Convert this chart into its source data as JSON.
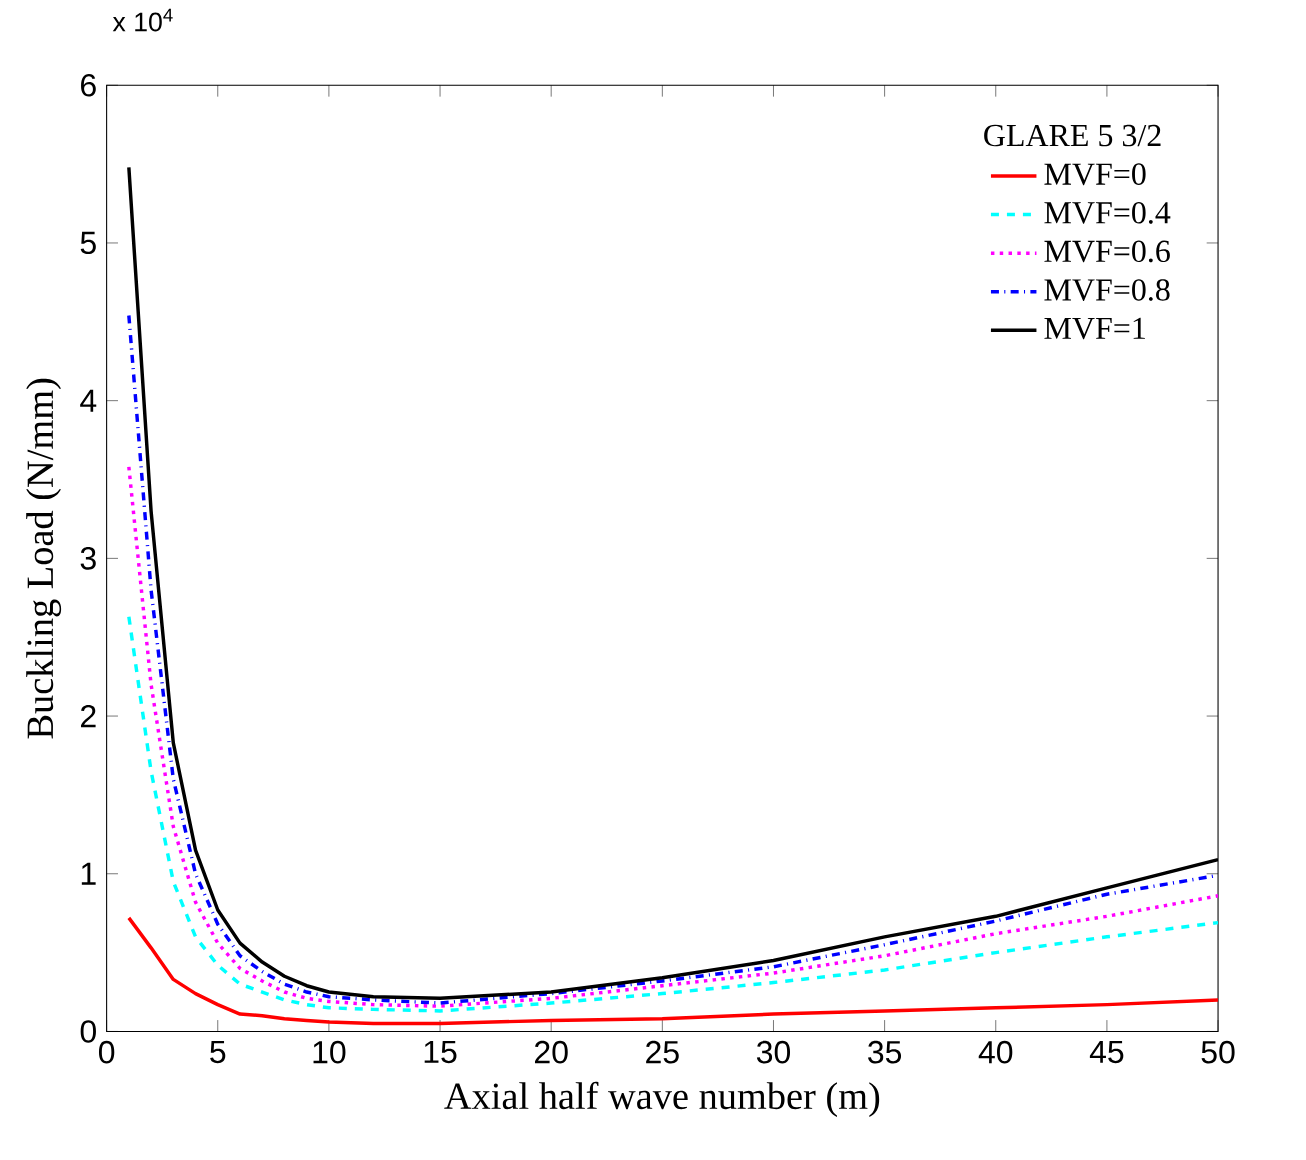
{
  "chart_data": {
    "type": "line",
    "xlabel": "Axial half wave number (m)",
    "ylabel": "Buckling Load (N/mm)",
    "legend_title": "GLARE 5 3/2",
    "annotations": [
      "x 10$^{4}$"
    ],
    "xlim": [
      0,
      50
    ],
    "xticks": [
      0,
      5,
      10,
      15,
      20,
      25,
      30,
      35,
      40,
      45,
      50
    ],
    "ylim": [
      0,
      6
    ],
    "yticks": [
      0,
      1,
      2,
      3,
      4,
      5,
      6
    ],
    "grid": false,
    "legend": "top right",
    "x": [
      1,
      2,
      3,
      4,
      5,
      6,
      7,
      8,
      9,
      10,
      12,
      15,
      20,
      25,
      30,
      35,
      40,
      45,
      50
    ],
    "series": [
      {
        "name": "MVF=0",
        "color": "#ff0000",
        "line_style": "solid",
        "values": [
          0.72,
          0.53,
          0.33,
          0.24,
          0.17,
          0.11,
          0.1,
          0.08,
          0.07,
          0.06,
          0.05,
          0.05,
          0.07,
          0.08,
          0.11,
          0.13,
          0.15,
          0.17,
          0.2
        ]
      },
      {
        "name": "MVF=0.4",
        "color": "#00ffff",
        "line_style": "dashed",
        "values": [
          2.63,
          1.65,
          0.95,
          0.6,
          0.42,
          0.3,
          0.25,
          0.2,
          0.17,
          0.15,
          0.14,
          0.13,
          0.18,
          0.24,
          0.31,
          0.39,
          0.5,
          0.6,
          0.69
        ]
      },
      {
        "name": "MVF=0.6",
        "color": "#ff00ff",
        "line_style": "dotted",
        "values": [
          3.58,
          2.2,
          1.3,
          0.82,
          0.56,
          0.4,
          0.32,
          0.25,
          0.21,
          0.19,
          0.17,
          0.16,
          0.21,
          0.29,
          0.37,
          0.48,
          0.62,
          0.73,
          0.86
        ]
      },
      {
        "name": "MVF=0.8",
        "color": "#0000ff",
        "line_style": "dashdot",
        "values": [
          4.54,
          2.8,
          1.6,
          1.0,
          0.68,
          0.48,
          0.38,
          0.3,
          0.25,
          0.22,
          0.2,
          0.18,
          0.24,
          0.32,
          0.41,
          0.55,
          0.7,
          0.87,
          0.99
        ]
      },
      {
        "name": "MVF=1",
        "color": "#000000",
        "line_style": "solid",
        "values": [
          5.48,
          3.3,
          1.83,
          1.15,
          0.77,
          0.56,
          0.44,
          0.35,
          0.29,
          0.25,
          0.22,
          0.21,
          0.25,
          0.34,
          0.45,
          0.6,
          0.73,
          0.91,
          1.09
        ]
      }
    ]
  }
}
